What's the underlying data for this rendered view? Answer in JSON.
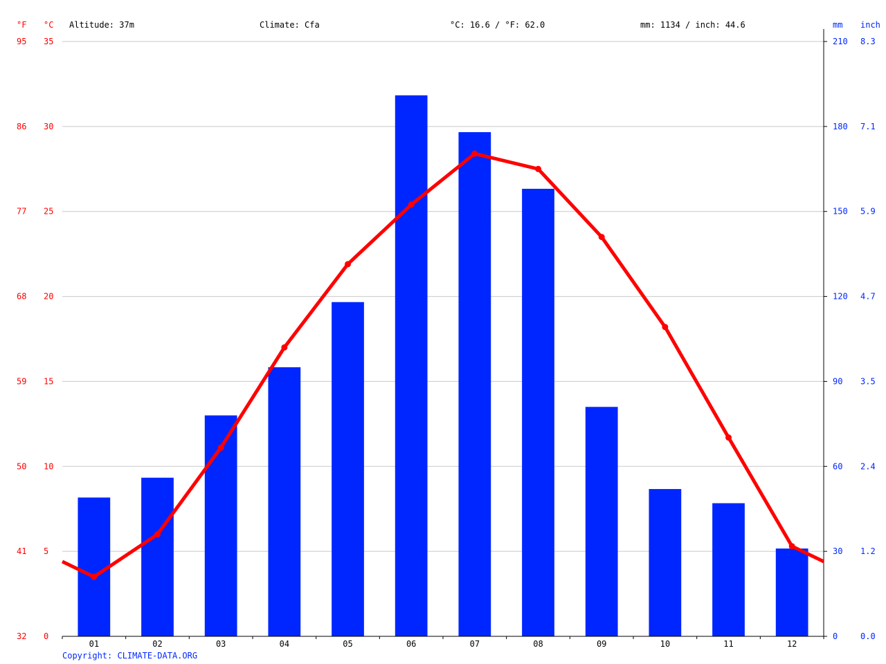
{
  "header": {
    "f_unit": "°F",
    "c_unit": "°C",
    "altitude": "Altitude: 37m",
    "climate": "Climate: Cfa",
    "temp_avg": "°C: 16.6 / °F: 62.0",
    "precip_total": "mm: 1134 / inch: 44.6",
    "mm_unit": "mm",
    "inch_unit": "inch"
  },
  "copyright": "Copyright: CLIMATE-DATA.ORG",
  "colors": {
    "temperature": "#ff0000",
    "precipitation": "#0026ff",
    "grid": "#c8c8c8",
    "axis": "#000000"
  },
  "chart_data": {
    "type": "bar",
    "categories": [
      "01",
      "02",
      "03",
      "04",
      "05",
      "06",
      "07",
      "08",
      "09",
      "10",
      "11",
      "12"
    ],
    "series": [
      {
        "type": "bar",
        "axis": "right",
        "values": [
          49,
          56,
          78,
          95,
          118,
          191,
          178,
          158,
          81,
          52,
          47,
          31
        ]
      },
      {
        "type": "line",
        "axis": "left",
        "values": [
          3.5,
          6.0,
          11.1,
          17.0,
          21.9,
          25.4,
          28.4,
          27.5,
          23.5,
          18.2,
          11.7,
          5.3
        ],
        "start_value": 4.4,
        "end_value": 4.4
      }
    ],
    "y_left_c": {
      "range": [
        0,
        35
      ],
      "ticks": [
        "0",
        "5",
        "10",
        "15",
        "20",
        "25",
        "30",
        "35"
      ]
    },
    "y_left_f": {
      "ticks": [
        "32",
        "41",
        "50",
        "59",
        "68",
        "77",
        "86",
        "95"
      ]
    },
    "y_right_mm": {
      "range": [
        0,
        210
      ],
      "ticks": [
        "0",
        "30",
        "60",
        "90",
        "120",
        "150",
        "180",
        "210"
      ]
    },
    "y_right_inch": {
      "ticks": [
        "0.0",
        "1.2",
        "2.4",
        "3.5",
        "4.7",
        "5.9",
        "7.1",
        "8.3"
      ]
    },
    "grid": true
  }
}
